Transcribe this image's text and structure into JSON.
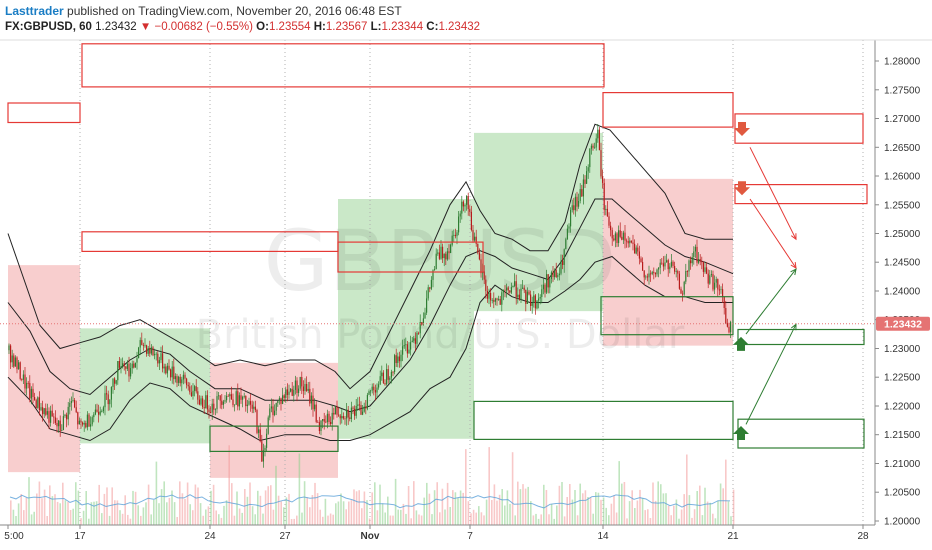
{
  "header": {
    "author": "Lasttrader",
    "published_text": "published on TradingView.com, November 20, 2016 06:48 EST",
    "symbol": "FX:GBPUSD, 60",
    "last": "1.23432",
    "change": "−0.00682 (−0.55%)",
    "open_label": "O:",
    "open": "1.23554",
    "high_label": "H:",
    "high": "1.23567",
    "low_label": "L:",
    "low": "1.23344",
    "close_label": "C:",
    "close": "1.23432"
  },
  "watermark": {
    "symbol": "GBPUSD",
    "description": "British Pound/U.S. Dollar"
  },
  "chart_data": {
    "type": "candlestick",
    "symbol": "FX:GBPUSD",
    "interval": "60",
    "y_ticks": [
      "1.20000",
      "1.20500",
      "1.21000",
      "1.21500",
      "1.22000",
      "1.22500",
      "1.23000",
      "1.23500",
      "1.24000",
      "1.24500",
      "1.25000",
      "1.25500",
      "1.26000",
      "1.26500",
      "1.27000",
      "1.27500",
      "1.28000"
    ],
    "ylim": [
      1.1995,
      1.2835
    ],
    "x_ticks": [
      "5:00",
      "17",
      "24",
      "27",
      "Nov",
      "7",
      "14",
      "21",
      "28"
    ],
    "current_price_label": "1.23432",
    "current_price": 1.23432,
    "price_path": [
      [
        0,
        1.232
      ],
      [
        14,
        1.228
      ],
      [
        30,
        1.222
      ],
      [
        45,
        1.219
      ],
      [
        60,
        1.216
      ],
      [
        72,
        1.221
      ],
      [
        80,
        1.216
      ],
      [
        95,
        1.219
      ],
      [
        110,
        1.222
      ],
      [
        120,
        1.228
      ],
      [
        132,
        1.226
      ],
      [
        142,
        1.231
      ],
      [
        155,
        1.229
      ],
      [
        170,
        1.226
      ],
      [
        185,
        1.224
      ],
      [
        200,
        1.221
      ],
      [
        212,
        1.22
      ],
      [
        225,
        1.222
      ],
      [
        240,
        1.221
      ],
      [
        255,
        1.219
      ],
      [
        262,
        1.211
      ],
      [
        270,
        1.219
      ],
      [
        285,
        1.222
      ],
      [
        300,
        1.224
      ],
      [
        312,
        1.221
      ],
      [
        320,
        1.216
      ],
      [
        335,
        1.219
      ],
      [
        347,
        1.219
      ],
      [
        360,
        1.219
      ],
      [
        372,
        1.223
      ],
      [
        385,
        1.225
      ],
      [
        400,
        1.229
      ],
      [
        415,
        1.232
      ],
      [
        425,
        1.237
      ],
      [
        437,
        1.246
      ],
      [
        447,
        1.247
      ],
      [
        458,
        1.252
      ],
      [
        466,
        1.257
      ],
      [
        476,
        1.247
      ],
      [
        488,
        1.239
      ],
      [
        500,
        1.238
      ],
      [
        512,
        1.241
      ],
      [
        524,
        1.239
      ],
      [
        536,
        1.238
      ],
      [
        548,
        1.242
      ],
      [
        560,
        1.243
      ],
      [
        572,
        1.254
      ],
      [
        582,
        1.257
      ],
      [
        590,
        1.264
      ],
      [
        598,
        1.267
      ],
      [
        604,
        1.255
      ],
      [
        612,
        1.25
      ],
      [
        622,
        1.249
      ],
      [
        632,
        1.248
      ],
      [
        642,
        1.244
      ],
      [
        652,
        1.242
      ],
      [
        662,
        1.245
      ],
      [
        672,
        1.244
      ],
      [
        682,
        1.24
      ],
      [
        694,
        1.247
      ],
      [
        706,
        1.243
      ],
      [
        716,
        1.241
      ],
      [
        724,
        1.238
      ],
      [
        728,
        1.232
      ],
      [
        732,
        1.2343
      ]
    ],
    "bollinger_upper": [
      [
        8,
        1.25
      ],
      [
        20,
        1.244
      ],
      [
        40,
        1.234
      ],
      [
        60,
        1.23
      ],
      [
        80,
        1.231
      ],
      [
        100,
        1.232
      ],
      [
        120,
        1.234
      ],
      [
        140,
        1.235
      ],
      [
        160,
        1.233
      ],
      [
        190,
        1.23
      ],
      [
        215,
        1.227
      ],
      [
        240,
        1.228
      ],
      [
        265,
        1.227
      ],
      [
        290,
        1.228
      ],
      [
        315,
        1.228
      ],
      [
        335,
        1.226
      ],
      [
        350,
        1.223
      ],
      [
        370,
        1.226
      ],
      [
        390,
        1.233
      ],
      [
        410,
        1.24
      ],
      [
        430,
        1.247
      ],
      [
        450,
        1.255
      ],
      [
        466,
        1.259
      ],
      [
        480,
        1.254
      ],
      [
        495,
        1.25
      ],
      [
        512,
        1.249
      ],
      [
        530,
        1.247
      ],
      [
        548,
        1.247
      ],
      [
        565,
        1.252
      ],
      [
        580,
        1.262
      ],
      [
        595,
        1.269
      ],
      [
        610,
        1.268
      ],
      [
        625,
        1.265
      ],
      [
        645,
        1.261
      ],
      [
        665,
        1.257
      ],
      [
        685,
        1.25
      ],
      [
        705,
        1.249
      ],
      [
        733,
        1.249
      ]
    ],
    "bollinger_middle": [
      [
        8,
        1.238
      ],
      [
        30,
        1.233
      ],
      [
        50,
        1.226
      ],
      [
        70,
        1.223
      ],
      [
        90,
        1.222
      ],
      [
        110,
        1.225
      ],
      [
        130,
        1.228
      ],
      [
        150,
        1.23
      ],
      [
        170,
        1.229
      ],
      [
        190,
        1.226
      ],
      [
        215,
        1.223
      ],
      [
        240,
        1.223
      ],
      [
        265,
        1.221
      ],
      [
        290,
        1.221
      ],
      [
        315,
        1.221
      ],
      [
        335,
        1.22
      ],
      [
        350,
        1.219
      ],
      [
        370,
        1.22
      ],
      [
        390,
        1.224
      ],
      [
        410,
        1.228
      ],
      [
        430,
        1.234
      ],
      [
        450,
        1.241
      ],
      [
        466,
        1.246
      ],
      [
        480,
        1.247
      ],
      [
        495,
        1.246
      ],
      [
        512,
        1.244
      ],
      [
        530,
        1.243
      ],
      [
        548,
        1.242
      ],
      [
        565,
        1.246
      ],
      [
        580,
        1.251
      ],
      [
        595,
        1.256
      ],
      [
        612,
        1.256
      ],
      [
        625,
        1.254
      ],
      [
        645,
        1.251
      ],
      [
        665,
        1.248
      ],
      [
        685,
        1.246
      ],
      [
        705,
        1.245
      ],
      [
        733,
        1.243
      ]
    ],
    "bollinger_lower": [
      [
        8,
        1.225
      ],
      [
        30,
        1.221
      ],
      [
        50,
        1.216
      ],
      [
        70,
        1.215
      ],
      [
        90,
        1.214
      ],
      [
        110,
        1.216
      ],
      [
        130,
        1.221
      ],
      [
        150,
        1.224
      ],
      [
        170,
        1.223
      ],
      [
        190,
        1.22
      ],
      [
        215,
        1.218
      ],
      [
        240,
        1.216
      ],
      [
        260,
        1.214
      ],
      [
        285,
        1.215
      ],
      [
        310,
        1.215
      ],
      [
        330,
        1.214
      ],
      [
        350,
        1.214
      ],
      [
        370,
        1.215
      ],
      [
        390,
        1.217
      ],
      [
        410,
        1.219
      ],
      [
        430,
        1.223
      ],
      [
        450,
        1.225
      ],
      [
        466,
        1.23
      ],
      [
        480,
        1.238
      ],
      [
        495,
        1.241
      ],
      [
        512,
        1.239
      ],
      [
        530,
        1.238
      ],
      [
        548,
        1.238
      ],
      [
        565,
        1.24
      ],
      [
        580,
        1.242
      ],
      [
        595,
        1.245
      ],
      [
        612,
        1.246
      ],
      [
        625,
        1.244
      ],
      [
        645,
        1.241
      ],
      [
        665,
        1.239
      ],
      [
        685,
        1.239
      ],
      [
        705,
        1.238
      ],
      [
        733,
        1.238
      ]
    ],
    "zones": [
      {
        "kind": "supply",
        "x1": 8,
        "x2": 80,
        "y1": 1.2085,
        "y2": 1.2445
      },
      {
        "kind": "demand",
        "x1": 80,
        "x2": 210,
        "y1": 1.2135,
        "y2": 1.2335
      },
      {
        "kind": "supply",
        "x1": 210,
        "x2": 338,
        "y1": 1.2075,
        "y2": 1.2275
      },
      {
        "kind": "demand",
        "x1": 338,
        "x2": 474,
        "y1": 1.2143,
        "y2": 1.256
      },
      {
        "kind": "demand",
        "x1": 474,
        "x2": 603,
        "y1": 1.2365,
        "y2": 1.2675
      },
      {
        "kind": "supply",
        "x1": 603,
        "x2": 733,
        "y1": 1.2305,
        "y2": 1.2595
      }
    ],
    "red_boxes": [
      {
        "x1": 8,
        "x2": 80,
        "y1": 1.2693,
        "y2": 1.2727
      },
      {
        "x1": 82,
        "x2": 604,
        "y1": 1.2755,
        "y2": 1.283
      },
      {
        "x1": 82,
        "x2": 338,
        "y1": 1.2469,
        "y2": 1.2503
      },
      {
        "x1": 338,
        "x2": 483,
        "y1": 1.2433,
        "y2": 1.2485
      },
      {
        "x1": 603,
        "x2": 733,
        "y1": 1.2685,
        "y2": 1.2745
      },
      {
        "x1": 735,
        "x2": 863,
        "y1": 1.2657,
        "y2": 1.2708
      },
      {
        "x1": 735,
        "x2": 867,
        "y1": 1.2552,
        "y2": 1.2585
      }
    ],
    "green_boxes": [
      {
        "x1": 210,
        "x2": 338,
        "y1": 1.2121,
        "y2": 1.2165
      },
      {
        "x1": 601,
        "x2": 733,
        "y1": 1.2324,
        "y2": 1.239
      },
      {
        "x1": 738,
        "x2": 864,
        "y1": 1.2307,
        "y2": 1.2333
      },
      {
        "x1": 474,
        "x2": 733,
        "y1": 1.2142,
        "y2": 1.2208
      },
      {
        "x1": 738,
        "x2": 864,
        "y1": 1.2127,
        "y2": 1.2177
      }
    ],
    "arrows_down": [
      {
        "x": 742,
        "y": 1.268
      },
      {
        "x": 742,
        "y": 1.2577
      }
    ],
    "arrows_up": [
      {
        "x": 741,
        "y": 1.2308
      },
      {
        "x": 741,
        "y": 1.2153
      }
    ],
    "projection_lines": [
      {
        "x1": 750,
        "y1": 1.265,
        "x2": 796,
        "y2": 1.249,
        "color": "#e53935"
      },
      {
        "x1": 750,
        "y1": 1.256,
        "x2": 796,
        "y2": 1.244,
        "color": "#e53935"
      },
      {
        "x1": 746,
        "y1": 1.2325,
        "x2": 796,
        "y2": 1.2438,
        "color": "#2e7d32"
      },
      {
        "x1": 746,
        "y1": 1.2168,
        "x2": 796,
        "y2": 1.2342,
        "color": "#2e7d32"
      }
    ]
  },
  "colors": {
    "supply_fill": "#f7c9c9",
    "demand_fill": "#c4e5c2",
    "red_line": "#e53935",
    "green_line": "#2e7d32",
    "price_label_bg": "#e57373",
    "arrow_down": "#e0593f",
    "arrow_up": "#2e7d32"
  }
}
